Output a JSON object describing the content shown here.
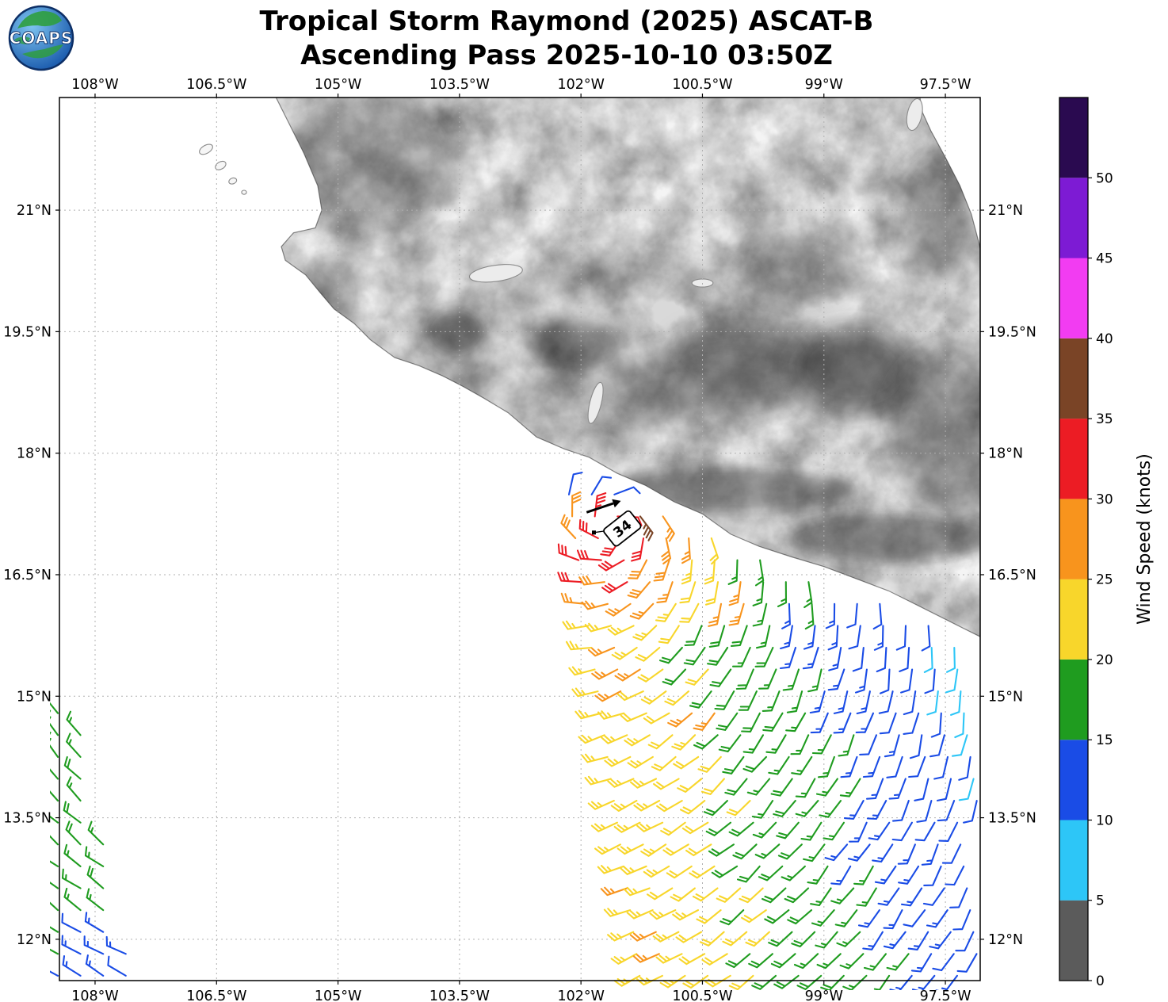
{
  "header": {
    "title_line1": "Tropical Storm Raymond (2025) ASCAT-B",
    "title_line2": "Ascending Pass 2025-10-10 03:50Z",
    "logo_text": "COAPS"
  },
  "chart_data": {
    "type": "wind-barb-map",
    "title": "Tropical Storm Raymond (2025) ASCAT-B",
    "subtitle": "Ascending Pass 2025-10-10 03:50Z",
    "projection": {
      "lon_min": -108.44,
      "lon_max": -97.07,
      "lat_min": 11.49,
      "lat_max": 22.39
    },
    "x_axis": {
      "tick_lons": [
        -108,
        -106.5,
        -105,
        -103.5,
        -102,
        -100.5,
        -99,
        -97.5
      ],
      "tick_labels": [
        "108°W",
        "106.5°W",
        "105°W",
        "103.5°W",
        "102°W",
        "100.5°W",
        "99°W",
        "97.5°W"
      ]
    },
    "y_axis": {
      "tick_lats": [
        21,
        19.5,
        18,
        16.5,
        15,
        13.5,
        12
      ],
      "tick_labels": [
        "21°N",
        "19.5°N",
        "18°N",
        "16.5°N",
        "15°N",
        "13.5°N",
        "12°N"
      ]
    },
    "grid": true,
    "colorbar": {
      "title": "Wind Speed (knots)",
      "tick_values": [
        0,
        5,
        10,
        15,
        20,
        25,
        30,
        35,
        40,
        45,
        50
      ],
      "tick_labels": [
        "0",
        "5",
        "10",
        "15",
        "20",
        "25",
        "30",
        "35",
        "40",
        "45",
        "50"
      ],
      "max_value": 55,
      "bins": [
        {
          "min": 0,
          "max": 5,
          "color": "#5b5b5b"
        },
        {
          "min": 5,
          "max": 10,
          "color": "#2dc6f7"
        },
        {
          "min": 10,
          "max": 15,
          "color": "#1a4ce6"
        },
        {
          "min": 15,
          "max": 20,
          "color": "#1f9c1f"
        },
        {
          "min": 20,
          "max": 25,
          "color": "#f8d62b"
        },
        {
          "min": 25,
          "max": 30,
          "color": "#f8941d"
        },
        {
          "min": 30,
          "max": 35,
          "color": "#ec1c24"
        },
        {
          "min": 35,
          "max": 40,
          "color": "#7a4426"
        },
        {
          "min": 40,
          "max": 45,
          "color": "#f23cf2"
        },
        {
          "min": 45,
          "max": 50,
          "color": "#7d1bd4"
        },
        {
          "min": 50,
          "max": 55,
          "color": "#2a0a50"
        }
      ]
    },
    "storm_marker": {
      "label": "34",
      "label_rotation_deg": -38,
      "position": {
        "lon": -101.84,
        "lat": 17.02
      },
      "label_pos": {
        "lon": -101.49,
        "lat": 17.07
      },
      "motion_arrow": {
        "from": {
          "lon": -101.93,
          "lat": 17.27
        },
        "to": {
          "lon": -101.6,
          "lat": 17.38
        }
      }
    },
    "wind_field_model": {
      "center": {
        "lon": -101.6,
        "lat": 17.1
      },
      "core": {
        "base_kt": 35,
        "max_speed_kt": 33,
        "falloff_kt_per_deg": 8,
        "ew_stretch": 1.35
      },
      "outer": {
        "ref_lon": -101.5,
        "ref_lat": 12,
        "base_kt": 25.5,
        "dlon_coef": -3.2,
        "dlat_coef": -0.8
      },
      "inflow": 0.35,
      "speed_noise_kt": 1.3,
      "dir_noise_deg": 7,
      "patches": [
        {
          "lon": -101.33,
          "lat": 17.32,
          "radius": 0.33,
          "speed_kt": 36
        },
        {
          "lon": -102.02,
          "lat": 16.47,
          "radius": 0.24,
          "speed_kt": 31
        },
        {
          "lon": -101.5,
          "lat": 15.3,
          "radius": 0.32,
          "speed_kt": 26
        },
        {
          "lon": -100.05,
          "lat": 16.2,
          "radius": 0.27,
          "speed_kt": 26
        },
        {
          "lon": -100.55,
          "lat": 14.75,
          "radius": 0.27,
          "speed_kt": 25.5
        }
      ],
      "coastal_low": {
        "lat_min": 17.42,
        "lon_max": -101.55,
        "speed_kt": 12
      }
    },
    "swaths": [
      {
        "name": "main",
        "lat_min": 11.55,
        "lat_max": 17.75,
        "dlat": 0.27,
        "dlon": 0.28,
        "left_lon_ref": -102.12,
        "ref_lat": 17.3,
        "left_slope_deg_per_deg": 0.147,
        "right_lon": -97.08,
        "coast_buffer_deg": 0.16
      },
      {
        "name": "west-strip",
        "lat_min": 11.55,
        "lat_max": 14.85,
        "dlat": 0.27,
        "dlon": 0.28,
        "left_lon": -108.46,
        "right_lon_ref": -107.53,
        "ref_lat": 11.6,
        "right_slope_deg_per_deg": 0.218,
        "speed_green_kt": 17,
        "speed_blue_kt": 13,
        "blue_lat_max": 12.3,
        "blue_lon_min": -108.22
      }
    ],
    "geography": {
      "coast_pacific": [
        [
          -105.78,
          22.42
        ],
        [
          -105.62,
          22.1
        ],
        [
          -105.42,
          21.7
        ],
        [
          -105.25,
          21.3
        ],
        [
          -105.2,
          21.0
        ],
        [
          -105.28,
          20.78
        ],
        [
          -105.55,
          20.72
        ],
        [
          -105.7,
          20.55
        ],
        [
          -105.65,
          20.38
        ],
        [
          -105.4,
          20.2
        ],
        [
          -105.22,
          19.98
        ],
        [
          -105.05,
          19.78
        ],
        [
          -104.8,
          19.6
        ],
        [
          -104.6,
          19.4
        ],
        [
          -104.3,
          19.18
        ],
        [
          -104.0,
          19.08
        ],
        [
          -103.7,
          18.95
        ],
        [
          -103.45,
          18.82
        ],
        [
          -103.2,
          18.68
        ],
        [
          -102.9,
          18.5
        ],
        [
          -102.55,
          18.2
        ],
        [
          -102.2,
          18.05
        ],
        [
          -101.9,
          17.95
        ],
        [
          -101.55,
          17.75
        ],
        [
          -101.2,
          17.6
        ],
        [
          -100.85,
          17.4
        ],
        [
          -100.5,
          17.25
        ],
        [
          -100.15,
          17.0
        ],
        [
          -99.8,
          16.85
        ],
        [
          -99.4,
          16.72
        ],
        [
          -99.0,
          16.6
        ],
        [
          -98.6,
          16.45
        ],
        [
          -98.2,
          16.3
        ],
        [
          -97.8,
          16.1
        ],
        [
          -97.4,
          15.9
        ],
        [
          -97.06,
          15.73
        ]
      ],
      "coast_gulf": [
        [
          -97.06,
          20.5
        ],
        [
          -97.18,
          20.95
        ],
        [
          -97.32,
          21.3
        ],
        [
          -97.5,
          21.65
        ],
        [
          -97.68,
          21.98
        ],
        [
          -97.78,
          22.2
        ],
        [
          -97.82,
          22.42
        ]
      ],
      "islands": [
        {
          "lon": -106.63,
          "lat": 21.75,
          "rx": 0.09,
          "ry": 0.05,
          "rot": -30
        },
        {
          "lon": -106.45,
          "lat": 21.55,
          "rx": 0.07,
          "ry": 0.045,
          "rot": -30
        },
        {
          "lon": -106.3,
          "lat": 21.36,
          "rx": 0.05,
          "ry": 0.035,
          "rot": -20
        },
        {
          "lon": -106.16,
          "lat": 21.22,
          "rx": 0.03,
          "ry": 0.025,
          "rot": 0
        }
      ],
      "lakes": [
        {
          "lon": -103.05,
          "lat": 20.22,
          "rx": 0.33,
          "ry": 0.1,
          "rot": -8
        },
        {
          "lon": -100.5,
          "lat": 20.1,
          "rx": 0.13,
          "ry": 0.05,
          "rot": 0
        },
        {
          "lon": -101.82,
          "lat": 18.62,
          "rx": 0.07,
          "ry": 0.26,
          "rot": 14
        },
        {
          "lon": -97.88,
          "lat": 22.18,
          "rx": 0.09,
          "ry": 0.2,
          "rot": 12
        }
      ],
      "terrain_shading": [
        {
          "lon": -104.6,
          "lat": 21.6,
          "rx": 1.1,
          "ry": 0.9,
          "opacity": 0.3,
          "blur": 16
        },
        {
          "lon": -105.1,
          "lat": 20.0,
          "rx": 0.4,
          "ry": 0.5,
          "opacity": 0.25,
          "blur": 8
        },
        {
          "lon": -103.55,
          "lat": 19.5,
          "rx": 0.35,
          "ry": 0.28,
          "opacity": 0.55,
          "blur": 8
        },
        {
          "lon": -102.1,
          "lat": 19.35,
          "rx": 0.55,
          "ry": 0.3,
          "opacity": 0.4,
          "blur": 8
        },
        {
          "lon": -100.0,
          "lat": 19.2,
          "rx": 0.9,
          "ry": 0.4,
          "opacity": 0.45,
          "blur": 16
        },
        {
          "lon": -98.65,
          "lat": 19.05,
          "rx": 0.75,
          "ry": 0.55,
          "opacity": 0.6,
          "blur": 16
        },
        {
          "lon": -100.6,
          "lat": 18.75,
          "rx": 1.5,
          "ry": 0.3,
          "opacity": 0.3,
          "blur": 16
        },
        {
          "lon": -100.2,
          "lat": 17.55,
          "rx": 1.6,
          "ry": 0.28,
          "opacity": 0.45,
          "blur": 8
        },
        {
          "lon": -98.2,
          "lat": 16.95,
          "rx": 1.3,
          "ry": 0.3,
          "opacity": 0.45,
          "blur": 8
        },
        {
          "lon": -97.45,
          "lat": 18.3,
          "rx": 0.8,
          "ry": 1.0,
          "opacity": 0.4,
          "blur": 16
        },
        {
          "lon": -99.3,
          "lat": 20.3,
          "rx": 0.8,
          "ry": 0.5,
          "opacity": 0.3,
          "blur": 16
        },
        {
          "lon": -97.6,
          "lat": 20.9,
          "rx": 0.5,
          "ry": 0.8,
          "opacity": 0.35,
          "blur": 16
        },
        {
          "lon": -101.5,
          "lat": 19.3,
          "rx": 2.5,
          "ry": 1.2,
          "opacity": 0.12,
          "blur": 16
        }
      ]
    }
  }
}
